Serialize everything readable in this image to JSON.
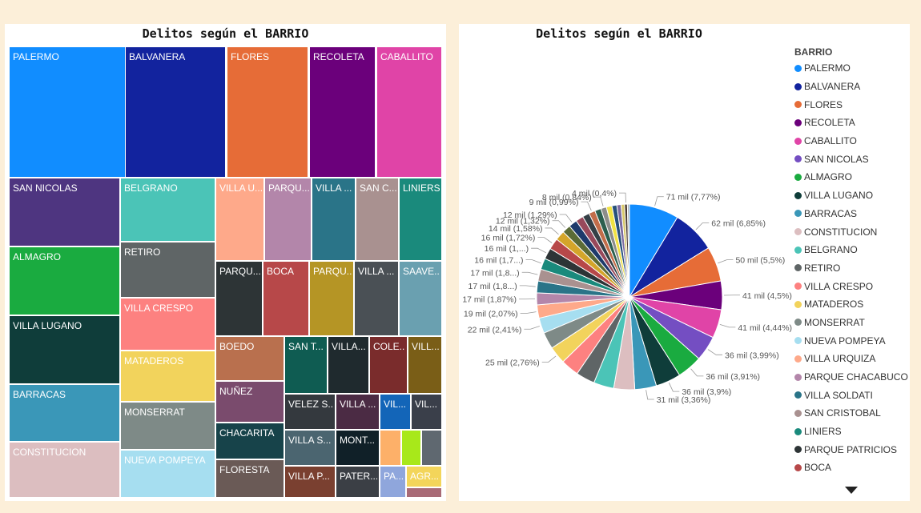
{
  "colors": {
    "PALERMO": "#118dff",
    "BALVANERA": "#12239e",
    "FLORES": "#e66c37",
    "RECOLETA": "#6b007b",
    "CABALLITO": "#e044a7",
    "SAN NICOLAS": "#744ec2",
    "ALMAGRO": "#1aab40",
    "VILLA LUGANO": "#0f3d3a",
    "BARRACAS": "#3a97b8",
    "CONSTITUCION": "#dcbec0",
    "BELGRANO": "#4bc4b7",
    "RETIRO": "#5f6566",
    "VILLA CRESPO": "#fd8180",
    "MATADEROS": "#f2d35c",
    "MONSERRAT": "#7e8a87",
    "NUEVA POMPEYA": "#a6def0",
    "VILLA URQUIZA": "#fea98a",
    "PARQUE CHACABUCO": "#b386aa",
    "VILLA SOLDATI": "#2a7488",
    "SAN CRISTOBAL": "#a99190",
    "LINIERS": "#1a8a7c",
    "PARQUE PATRICIOS": "#2d3436",
    "BOCA": "#b74849"
  },
  "treemap": {
    "title": "Delitos según el BARRIO",
    "tiles": [
      {
        "label": "PALERMO",
        "color": "#118dff"
      },
      {
        "label": "BALVANERA",
        "color": "#12239e"
      },
      {
        "label": "FLORES",
        "color": "#e66c37"
      },
      {
        "label": "RECOLETA",
        "color": "#6b007b"
      },
      {
        "label": "CABALLITO",
        "color": "#e044a7"
      },
      {
        "label": "SAN NICOLAS",
        "color": "#4e3580"
      },
      {
        "label": "BELGRANO",
        "color": "#4bc4b7"
      },
      {
        "label": "VILLA U...",
        "color": "#fea98a"
      },
      {
        "label": "PARQU...",
        "color": "#b386aa"
      },
      {
        "label": "VILLA ...",
        "color": "#2a7488"
      },
      {
        "label": "SAN C...",
        "color": "#a99190"
      },
      {
        "label": "LINIERS",
        "color": "#1a8a7c"
      },
      {
        "label": "ALMAGRO",
        "color": "#1aab40"
      },
      {
        "label": "RETIRO",
        "color": "#5f6566"
      },
      {
        "label": "PARQU...",
        "color": "#2d3436"
      },
      {
        "label": "BOCA",
        "color": "#b74849"
      },
      {
        "label": "PARQU...",
        "color": "#b59525"
      },
      {
        "label": "VILLA ...",
        "color": "#4a5055"
      },
      {
        "label": "SAAVE...",
        "color": "#6aa0b0"
      },
      {
        "label": "VILLA LUGANO",
        "color": "#0f3d3a"
      },
      {
        "label": "VILLA CRESPO",
        "color": "#fd8180"
      },
      {
        "label": "BARRACAS",
        "color": "#3a97b8"
      },
      {
        "label": "MATADEROS",
        "color": "#f2d35c"
      },
      {
        "label": "BOEDO",
        "color": "#b9704e"
      },
      {
        "label": "SAN T...",
        "color": "#0f5c52"
      },
      {
        "label": "VILLA...",
        "color": "#1f2a2e"
      },
      {
        "label": "COLE...",
        "color": "#7a2c2c"
      },
      {
        "label": "VILL...",
        "color": "#7a5e17"
      },
      {
        "label": "NUÑEZ",
        "color": "#7a4b6d"
      },
      {
        "label": "VELEZ S...",
        "color": "#34393e"
      },
      {
        "label": "VILLA ...",
        "color": "#4b2b44"
      },
      {
        "label": "VIL...",
        "color": "#1365b8"
      },
      {
        "label": "VIL...",
        "color": "#3a3f4a"
      },
      {
        "label": "MONSERRAT",
        "color": "#7e8a87"
      },
      {
        "label": "CONSTITUCION",
        "color": "#dcbec0"
      },
      {
        "label": "CHACARITA",
        "color": "#17434a"
      },
      {
        "label": "VILLA S...",
        "color": "#4b6570"
      },
      {
        "label": "MONT...",
        "color": "#102028"
      },
      {
        "label": "NUEVA POMPEYA",
        "color": "#a6def0"
      },
      {
        "label": "FLORESTA",
        "color": "#6a5a56"
      },
      {
        "label": "VILLA P...",
        "color": "#7a4030"
      },
      {
        "label": "PATER...",
        "color": "#3b3f45"
      },
      {
        "label": "PA...",
        "color": "#8fa6dc"
      },
      {
        "label": "AGR...",
        "color": "#f3d55a"
      },
      {
        "label": "",
        "color": "#fdb069"
      },
      {
        "label": "",
        "color": "#a8e81a"
      },
      {
        "label": "",
        "color": "#5f6870"
      },
      {
        "label": "",
        "color": "#a86a76"
      }
    ]
  },
  "chart_data": {
    "type": "pie",
    "title": "Delitos según el BARRIO",
    "legend_title": "BARRIO",
    "legend_position": "right",
    "slices": [
      {
        "name": "PALERMO",
        "value": 71,
        "pct": 7.77,
        "label": "71 mil (7,77%)"
      },
      {
        "name": "BALVANERA",
        "value": 62,
        "pct": 6.85,
        "label": "62 mil (6,85%)"
      },
      {
        "name": "FLORES",
        "value": 50,
        "pct": 5.5,
        "label": "50 mil (5,5%)"
      },
      {
        "name": "RECOLETA",
        "value": 41,
        "pct": 4.5,
        "label": "41 mil (4,5%)"
      },
      {
        "name": "CABALLITO",
        "value": 41,
        "pct": 4.44,
        "label": "41 mil (4,44%)"
      },
      {
        "name": "SAN NICOLAS",
        "value": 36,
        "pct": 3.99,
        "label": "36 mil (3,99%)"
      },
      {
        "name": "ALMAGRO",
        "value": 36,
        "pct": 3.91,
        "label": "36 mil (3,91%)"
      },
      {
        "name": "VILLA LUGANO",
        "value": 36,
        "pct": 3.9,
        "label": "36 mil (3,9%)"
      },
      {
        "name": "BARRACAS",
        "value": 31,
        "pct": 3.36,
        "label": "31 mil (3,36%)"
      },
      {
        "name": "CONSTITUCION",
        "value": 30,
        "pct": 3.3,
        "label": ""
      },
      {
        "name": "BELGRANO",
        "value": 29,
        "pct": 3.2,
        "label": ""
      },
      {
        "name": "RETIRO",
        "value": 27,
        "pct": 2.9,
        "label": ""
      },
      {
        "name": "VILLA CRESPO",
        "value": 26,
        "pct": 2.85,
        "label": ""
      },
      {
        "name": "MATADEROS",
        "value": 25,
        "pct": 2.76,
        "label": "25 mil (2,76%)"
      },
      {
        "name": "MONSERRAT",
        "value": 24,
        "pct": 2.6,
        "label": ""
      },
      {
        "name": "NUEVA POMPEYA",
        "value": 22,
        "pct": 2.41,
        "label": "22 mil (2,41%)"
      },
      {
        "name": "VILLA URQUIZA",
        "value": 19,
        "pct": 2.07,
        "label": "19 mil (2,07%)"
      },
      {
        "name": "PARQUE CHACABUCO",
        "value": 17,
        "pct": 1.87,
        "label": "17 mil (1,87%)"
      },
      {
        "name": "VILLA SOLDATI",
        "value": 17,
        "pct": 1.8,
        "label": "17 mil (1,8...)"
      },
      {
        "name": "SAN CRISTOBAL",
        "value": 17,
        "pct": 1.8,
        "label": "17 mil (1,8...)"
      },
      {
        "name": "LINIERS",
        "value": 16,
        "pct": 1.7,
        "label": "16 mil (1,7...)"
      },
      {
        "name": "PARQUE PATRICIOS",
        "value": 16,
        "pct": 1.7,
        "label": "16 mil (1,...)"
      },
      {
        "name": "BOCA",
        "value": 16,
        "pct": 1.72,
        "label": "16 mil (1,72%)"
      },
      {
        "name": "",
        "value": 14,
        "pct": 1.58,
        "label": "14 mil (1,58%)"
      },
      {
        "name": "",
        "value": 12,
        "pct": 1.32,
        "label": "12 mil (1,32%)"
      },
      {
        "name": "",
        "value": 12,
        "pct": 1.29,
        "label": "12 mil (1,29%)"
      },
      {
        "name": "",
        "value": 11,
        "pct": 1.2,
        "label": ""
      },
      {
        "name": "",
        "value": 10,
        "pct": 1.1,
        "label": ""
      },
      {
        "name": "",
        "value": 9,
        "pct": 0.99,
        "label": "9 mil (0,99%)"
      },
      {
        "name": "",
        "value": 9,
        "pct": 0.95,
        "label": ""
      },
      {
        "name": "",
        "value": 8,
        "pct": 0.84,
        "label": "8 mil (0,84%)"
      },
      {
        "name": "",
        "value": 8,
        "pct": 0.8,
        "label": ""
      },
      {
        "name": "",
        "value": 7,
        "pct": 0.75,
        "label": ""
      },
      {
        "name": "",
        "value": 6,
        "pct": 0.65,
        "label": ""
      },
      {
        "name": "",
        "value": 5,
        "pct": 0.55,
        "label": ""
      },
      {
        "name": "",
        "value": 4,
        "pct": 0.4,
        "label": "4 mil (0,4%)"
      },
      {
        "name": "",
        "value": 3,
        "pct": 0.3,
        "label": ""
      }
    ],
    "extra_colors": [
      "#d4a52a",
      "#5b6b36",
      "#1e3a6b",
      "#98495b",
      "#354046",
      "#c26d4a",
      "#2b5f4e",
      "#8c8d8a",
      "#f0e244",
      "#27507a",
      "#7a6aa0",
      "#d8c86c",
      "#47372e",
      "#b0b5b7"
    ]
  }
}
